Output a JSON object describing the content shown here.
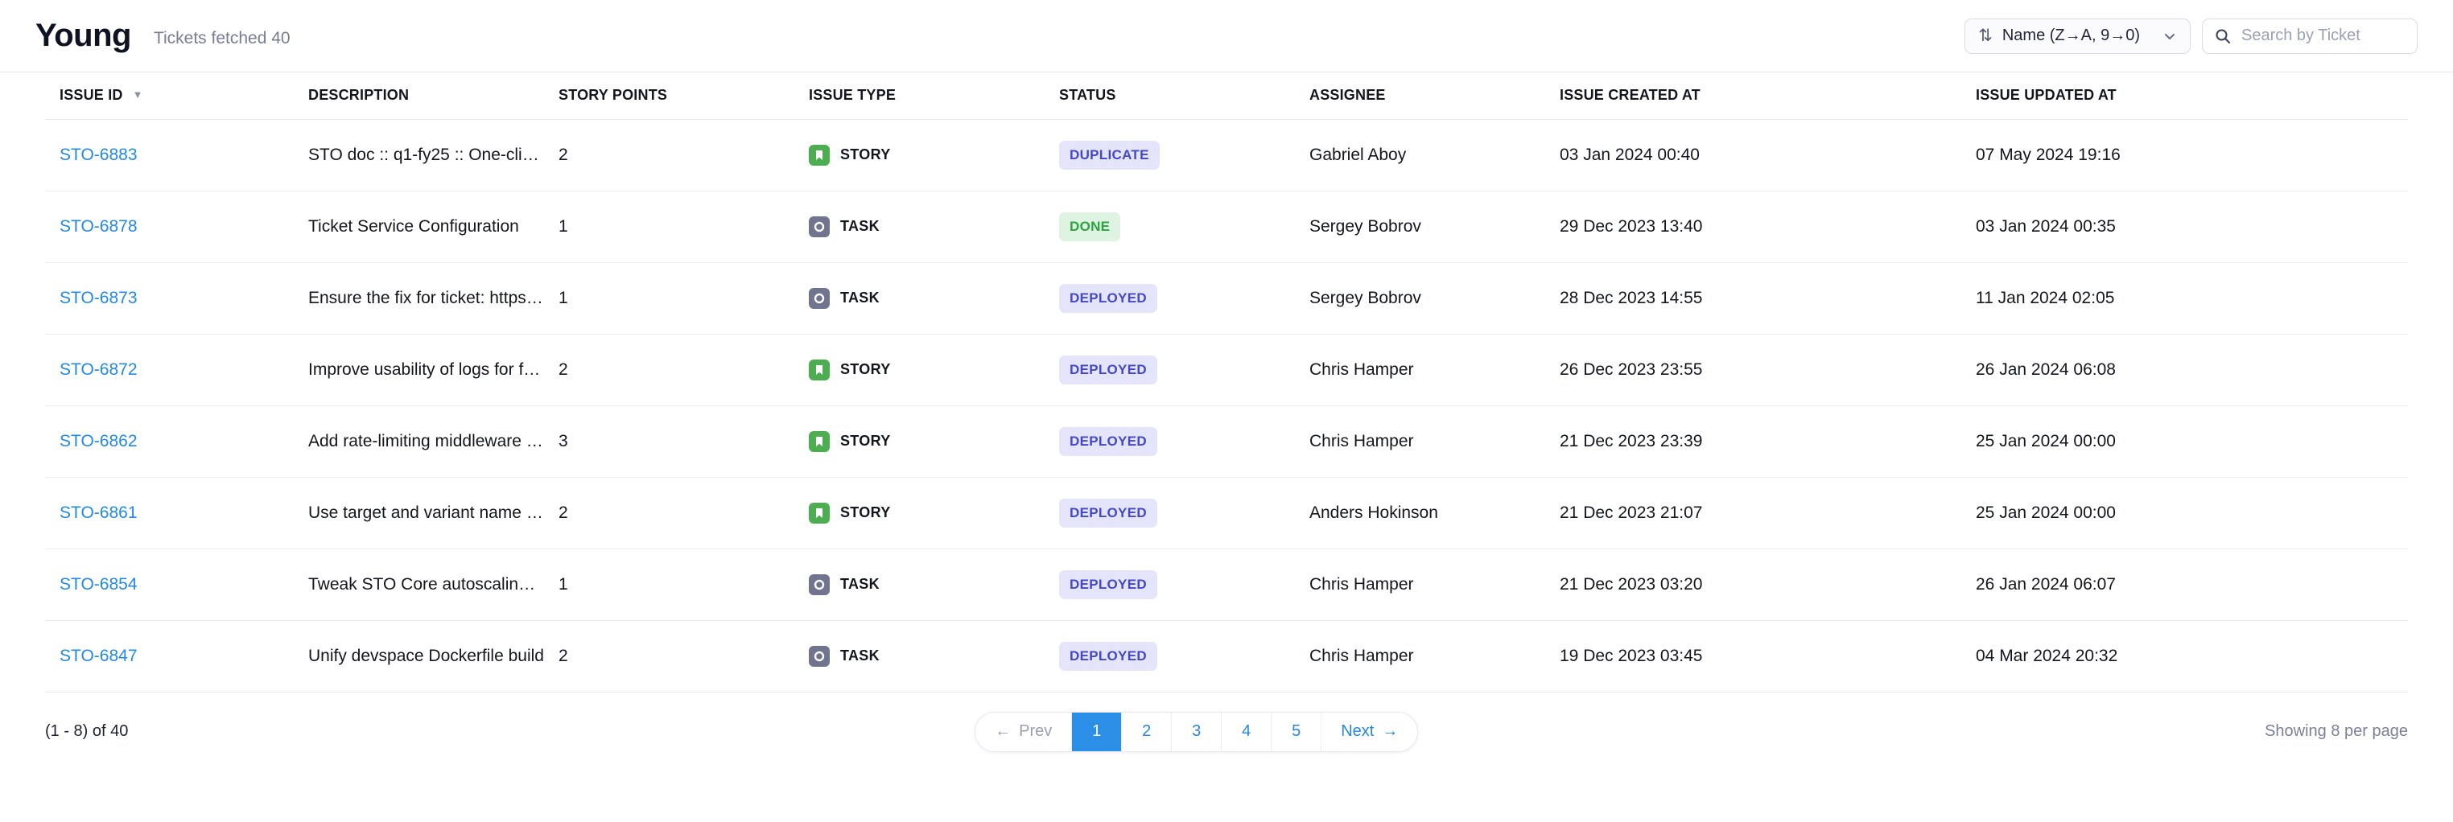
{
  "header": {
    "title": "Young",
    "subtitle": "Tickets fetched 40"
  },
  "controls": {
    "sort_icon": "sort-arrows-icon",
    "sort_label": "Name (Z→A, 9→0)",
    "search_icon": "search-icon",
    "search_placeholder": "Search by Ticket"
  },
  "table": {
    "columns": [
      {
        "label": "ISSUE ID",
        "sorted": true
      },
      {
        "label": "DESCRIPTION"
      },
      {
        "label": "STORY POINTS"
      },
      {
        "label": "ISSUE TYPE"
      },
      {
        "label": "STATUS"
      },
      {
        "label": "ASSIGNEE"
      },
      {
        "label": "ISSUE CREATED AT"
      },
      {
        "label": "ISSUE UPDATED AT"
      }
    ],
    "rows": [
      {
        "id": "STO-6883",
        "description": "STO doc :: q1-fy25 :: One-click e...",
        "story_points": "2",
        "issue_type": "STORY",
        "status": "DUPLICATE",
        "assignee": "Gabriel Aboy",
        "created_at": "03 Jan 2024 00:40",
        "updated_at": "07 May 2024 19:16"
      },
      {
        "id": "STO-6878",
        "description": "Ticket Service Configuration",
        "story_points": "1",
        "issue_type": "TASK",
        "status": "DONE",
        "assignee": "Sergey Bobrov",
        "created_at": "29 Dec 2023 13:40",
        "updated_at": "03 Jan 2024 00:35"
      },
      {
        "id": "STO-6873",
        "description": "Ensure the fix for ticket: https://h...",
        "story_points": "1",
        "issue_type": "TASK",
        "status": "DEPLOYED",
        "assignee": "Sergey Bobrov",
        "created_at": "28 Dec 2023 14:55",
        "updated_at": "11 Jan 2024 02:05"
      },
      {
        "id": "STO-6872",
        "description": "Improve usability of logs for failur...",
        "story_points": "2",
        "issue_type": "STORY",
        "status": "DEPLOYED",
        "assignee": "Chris Hamper",
        "created_at": "26 Dec 2023 23:55",
        "updated_at": "26 Jan 2024 06:08"
      },
      {
        "id": "STO-6862",
        "description": "Add rate-limiting middleware to S...",
        "story_points": "3",
        "issue_type": "STORY",
        "status": "DEPLOYED",
        "assignee": "Chris Hamper",
        "created_at": "21 Dec 2023 23:39",
        "updated_at": "25 Jan 2024 00:00"
      },
      {
        "id": "STO-6861",
        "description": "Use target and variant name sear...",
        "story_points": "2",
        "issue_type": "STORY",
        "status": "DEPLOYED",
        "assignee": "Anders Hokinson",
        "created_at": "21 Dec 2023 21:07",
        "updated_at": "25 Jan 2024 00:00"
      },
      {
        "id": "STO-6854",
        "description": "Tweak STO Core autoscaling par...",
        "story_points": "1",
        "issue_type": "TASK",
        "status": "DEPLOYED",
        "assignee": "Chris Hamper",
        "created_at": "21 Dec 2023 03:20",
        "updated_at": "26 Jan 2024 06:07"
      },
      {
        "id": "STO-6847",
        "description": "Unify devspace Dockerfile build",
        "story_points": "2",
        "issue_type": "TASK",
        "status": "DEPLOYED",
        "assignee": "Chris Hamper",
        "created_at": "19 Dec 2023 03:45",
        "updated_at": "04 Mar 2024 20:32"
      }
    ]
  },
  "status_styles": {
    "DUPLICATE": {
      "bg": "#e4e5fb",
      "fg": "#4448c8"
    },
    "DONE": {
      "bg": "#def3e2",
      "fg": "#2aa43c"
    },
    "DEPLOYED": {
      "bg": "#e4e5fb",
      "fg": "#4448c8"
    }
  },
  "issue_type_colors": {
    "STORY": "#4cae50",
    "TASK": "#70748f"
  },
  "pagination": {
    "range_label": "(1 - 8) of 40",
    "prev_label": "Prev",
    "prev_arrow": "←",
    "pages": [
      "1",
      "2",
      "3",
      "4",
      "5"
    ],
    "active_page": "1",
    "next_label": "Next",
    "next_arrow": "→",
    "per_page_label": "Showing 8 per page"
  },
  "colors": {
    "link_blue": "#2189e8",
    "pager_active_blue": "#2b8fe8",
    "subtitle_gray": "#787c95"
  }
}
